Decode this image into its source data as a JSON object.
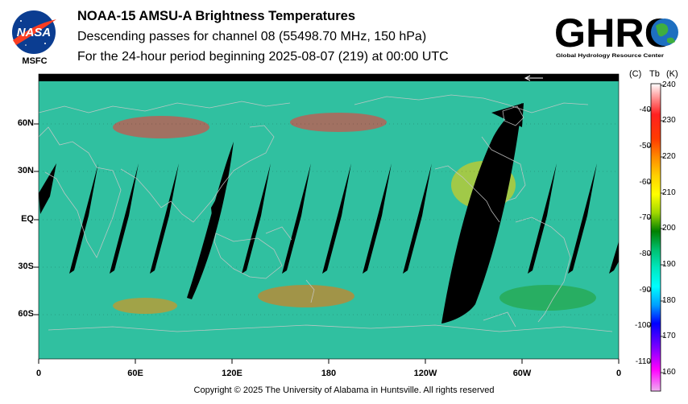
{
  "header": {
    "title": "NOAA-15 AMSU-A Brightness Temperatures",
    "subtitle": "Descending passes for channel 08 (55498.70 MHz, 150 hPa)",
    "period": "For the 24-hour period beginning 2025-08-07 (219) at 00:00 UTC"
  },
  "logos": {
    "nasa_text": "NASA",
    "nasa_sub": "MSFC",
    "ghrc_text": "GHRC",
    "ghrc_sub": "Global Hydrology Resource Center"
  },
  "map": {
    "lat_labels": [
      "60N",
      "30N",
      "EQ",
      "30S",
      "60S"
    ],
    "lon_labels": [
      "0",
      "60E",
      "120E",
      "180",
      "120W",
      "60W",
      "0"
    ]
  },
  "colorbar": {
    "unit_c": "(C)",
    "unit_tb": "Tb",
    "unit_k": "(K)",
    "celsius_ticks": [
      "-40",
      "-50",
      "-60",
      "-70",
      "-80",
      "-90",
      "-100",
      "-110"
    ],
    "kelvin_ticks": [
      "240",
      "230",
      "220",
      "210",
      "200",
      "190",
      "180",
      "170",
      "160"
    ],
    "colors": [
      "#ffffff",
      "#ff0000",
      "#ff6a00",
      "#ffd800",
      "#ffff00",
      "#00a000",
      "#00e0a0",
      "#00ffff",
      "#0000ff",
      "#ff00ff",
      "#f0b0f0"
    ]
  },
  "footer": {
    "copyright": "Copyright © 2025 The University of Alabama in Huntsville.  All rights reserved"
  }
}
